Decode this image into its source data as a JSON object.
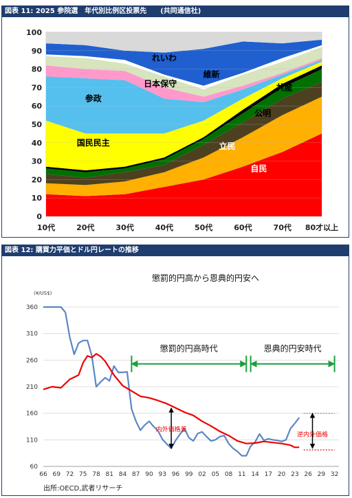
{
  "panels": [
    {
      "header": "図表 11: 2025 参院選　年代別比例区投票先　　(共同通信社)"
    },
    {
      "header": "図表 12: 購買力平価とドル円レートの推移",
      "source": "出所:OECD,武者リサーチ"
    }
  ],
  "chart_data": [
    {
      "type": "area",
      "stacked": true,
      "title": "",
      "xlabel": "",
      "ylabel": "",
      "ylim": [
        0,
        100
      ],
      "yticks": [
        0,
        10,
        20,
        30,
        40,
        50,
        60,
        70,
        80,
        90,
        100
      ],
      "grid": true,
      "categories": [
        "10代",
        "20代",
        "30代",
        "40代",
        "50代",
        "60代",
        "70代",
        "80才以上"
      ],
      "series": [
        {
          "name": "自民",
          "color": "#ff0000",
          "values": [
            12,
            11,
            12,
            16,
            20,
            27,
            35,
            45
          ]
        },
        {
          "name": "",
          "color": "#ffb000",
          "values": [
            6,
            6,
            7,
            8,
            12,
            16,
            20,
            20
          ]
        },
        {
          "name": "立民",
          "color": "#4d4020",
          "values": [
            5,
            4,
            5,
            4,
            7,
            8,
            9,
            8
          ]
        },
        {
          "name": "公明",
          "color": "#007000",
          "values": [
            3,
            3,
            2,
            3,
            3,
            5,
            6,
            7
          ]
        },
        {
          "name": "共産",
          "color": "#000000",
          "values": [
            1,
            1,
            1,
            1,
            1,
            2,
            2,
            2
          ]
        },
        {
          "name": "国民民主",
          "color": "#ffff00",
          "values": [
            25,
            20,
            18,
            13,
            9,
            6,
            3,
            2
          ]
        },
        {
          "name": "参政",
          "color": "#55c0ee",
          "values": [
            24,
            30,
            29,
            19,
            10,
            5,
            2,
            1
          ]
        },
        {
          "name": "日本保守",
          "color": "#ff99cc",
          "values": [
            6,
            5,
            5,
            6,
            3,
            2,
            1,
            1
          ]
        },
        {
          "name": "維新",
          "color": "#d7e4bd",
          "values": [
            5,
            6,
            4,
            6,
            4,
            6,
            6,
            6
          ]
        },
        {
          "name": "",
          "color": "#ffffff",
          "values": [
            1,
            1,
            2,
            1,
            2,
            1,
            2,
            1
          ]
        },
        {
          "name": "れいわ",
          "color": "#1f5fd0",
          "values": [
            6,
            6,
            5,
            12,
            20,
            17,
            8,
            3
          ]
        },
        {
          "name": "",
          "color": "#d9d9d9",
          "values": [
            6,
            7,
            10,
            11,
            9,
            5,
            6,
            4
          ]
        }
      ],
      "labels": [
        {
          "text": "れいわ",
          "x": "40代",
          "y": 86,
          "color": "#000000"
        },
        {
          "text": "維新",
          "x": 4.2,
          "y": 77,
          "color": "#000000"
        },
        {
          "text": "日本保守",
          "x": 2.9,
          "y": 72,
          "color": "#000000"
        },
        {
          "text": "参政",
          "x": 1.2,
          "y": 64,
          "color": "#000000"
        },
        {
          "text": "共産",
          "x": 6.05,
          "y": 70,
          "color": "#000000"
        },
        {
          "text": "公明",
          "x": 5.5,
          "y": 56,
          "color": "#000000"
        },
        {
          "text": "国民民主",
          "x": 1.2,
          "y": 40,
          "color": "#000000"
        },
        {
          "text": "立民",
          "x": 4.6,
          "y": 38,
          "color": "#ffffff"
        },
        {
          "text": "自民",
          "x": 5.4,
          "y": 26,
          "color": "#ffffff"
        }
      ]
    },
    {
      "type": "line",
      "title": "懲罰的円高から恩典的円安へ",
      "yunit": "(¥/US$)",
      "ylim": [
        60,
        360
      ],
      "yticks": [
        60,
        110,
        160,
        210,
        260,
        310,
        360
      ],
      "xlim": [
        1966,
        2033
      ],
      "xticks": [
        1966,
        1969,
        1972,
        1975,
        1978,
        1981,
        1984,
        1987,
        1990,
        1993,
        1996,
        1999,
        2002,
        2005,
        2008,
        2011,
        2014,
        2017,
        2020,
        2023,
        2026,
        2029,
        2032
      ],
      "xticklabels": [
        "66",
        "69",
        "72",
        "75",
        "78",
        "81",
        "84",
        "87",
        "90",
        "93",
        "96",
        "99",
        "02",
        "05",
        "08",
        "11",
        "14",
        "17",
        "20",
        "23",
        "26",
        "29",
        "32"
      ],
      "grid": true,
      "series": [
        {
          "name": "ドル円レート",
          "color": "#5b86c4",
          "x": [
            1966,
            1967,
            1968,
            1969,
            1970,
            1971,
            1972,
            1973,
            1974,
            1975,
            1976,
            1977,
            1978,
            1979,
            1980,
            1981,
            1982,
            1983,
            1984,
            1985,
            1986,
            1987,
            1988,
            1989,
            1990,
            1991,
            1992,
            1993,
            1994,
            1995,
            1996,
            1997,
            1998,
            1999,
            2000,
            2001,
            2002,
            2003,
            2004,
            2005,
            2006,
            2007,
            2008,
            2009,
            2010,
            2011,
            2012,
            2013,
            2014,
            2015,
            2016,
            2017,
            2018,
            2019,
            2020,
            2021,
            2022,
            2023,
            2024
          ],
          "y": [
            360,
            360,
            360,
            360,
            360,
            350,
            303,
            271,
            292,
            297,
            297,
            268,
            210,
            219,
            227,
            221,
            249,
            237,
            237,
            238,
            168,
            145,
            128,
            138,
            145,
            135,
            127,
            111,
            102,
            94,
            109,
            121,
            131,
            114,
            108,
            122,
            125,
            116,
            108,
            110,
            116,
            118,
            103,
            94,
            88,
            80,
            80,
            98,
            106,
            121,
            109,
            112,
            110,
            109,
            107,
            110,
            131,
            141,
            152
          ]
        },
        {
          "name": "購買力平価",
          "color": "#ee0000",
          "x": [
            1966,
            1968,
            1970,
            1972,
            1974,
            1975,
            1976,
            1977,
            1978,
            1979,
            1980,
            1982,
            1984,
            1986,
            1988,
            1990,
            1992,
            1994,
            1996,
            1998,
            2000,
            2002,
            2004,
            2006,
            2008,
            2010,
            2012,
            2014,
            2016,
            2018,
            2020,
            2022,
            2023,
            2024
          ],
          "y": [
            205,
            210,
            208,
            224,
            232,
            255,
            268,
            265,
            272,
            267,
            258,
            232,
            212,
            202,
            192,
            189,
            184,
            178,
            170,
            162,
            156,
            145,
            136,
            126,
            118,
            108,
            103,
            104,
            107,
            105,
            103,
            100,
            96,
            96
          ]
        },
        {
          "name": "",
          "color": "#5b86c4",
          "dashed": true,
          "x": [
            2025,
            2032
          ],
          "y": [
            160,
            160
          ]
        },
        {
          "name": "",
          "color": "#ee0000",
          "dashed": true,
          "x": [
            2025,
            2032
          ],
          "y": [
            91,
            91
          ]
        }
      ],
      "spans": [
        {
          "label": "懲罰的円高時代",
          "from": 1986,
          "to": 2012,
          "y": 253
        },
        {
          "label": "恩典的円安時代",
          "from": 2013,
          "to": 2032,
          "y": 253
        }
      ],
      "gaps": [
        {
          "label": "内外価格差",
          "x": 1995,
          "y_from": 94,
          "y_to": 170,
          "label_y": 126
        },
        {
          "label": "逆内外価格",
          "x": 2027,
          "y_from": 94,
          "y_to": 160,
          "label_y": 116
        }
      ]
    }
  ]
}
